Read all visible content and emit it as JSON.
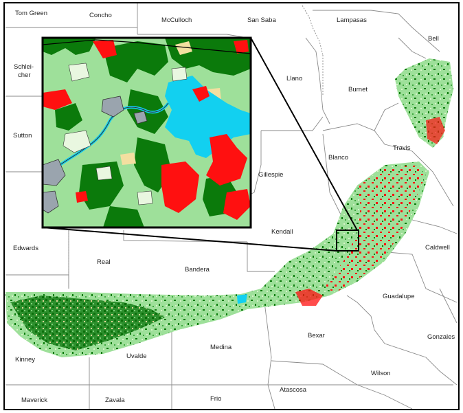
{
  "map": {
    "counties": [
      {
        "key": "tom-green",
        "name": "Tom Green"
      },
      {
        "key": "concho",
        "name": "Concho"
      },
      {
        "key": "mcculloch",
        "name": "McCulloch"
      },
      {
        "key": "san-saba",
        "name": "San Saba"
      },
      {
        "key": "lampasas",
        "name": "Lampasas"
      },
      {
        "key": "bell",
        "name": "Bell"
      },
      {
        "key": "schleicher-1",
        "name": "Schlei-"
      },
      {
        "key": "schleicher-2",
        "name": "cher"
      },
      {
        "key": "llano",
        "name": "Llano"
      },
      {
        "key": "burnet",
        "name": "Burnet"
      },
      {
        "key": "sutton",
        "name": "Sutton"
      },
      {
        "key": "travis",
        "name": "Travis"
      },
      {
        "key": "blanco",
        "name": "Blanco"
      },
      {
        "key": "gillespie",
        "name": "Gillespie"
      },
      {
        "key": "kendall",
        "name": "Kendall"
      },
      {
        "key": "edwards",
        "name": "Edwards"
      },
      {
        "key": "real",
        "name": "Real"
      },
      {
        "key": "caldwell",
        "name": "Caldwell"
      },
      {
        "key": "bandera",
        "name": "Bandera"
      },
      {
        "key": "guadalupe",
        "name": "Guadalupe"
      },
      {
        "key": "bexar",
        "name": "Bexar"
      },
      {
        "key": "gonzales",
        "name": "Gonzales"
      },
      {
        "key": "kinney",
        "name": "Kinney"
      },
      {
        "key": "uvalde",
        "name": "Uvalde"
      },
      {
        "key": "medina",
        "name": "Medina"
      },
      {
        "key": "wilson",
        "name": "Wilson"
      },
      {
        "key": "atascosa",
        "name": "Atascosa"
      },
      {
        "key": "maverick",
        "name": "Maverick"
      },
      {
        "key": "zavala",
        "name": "Zavala"
      },
      {
        "key": "frio",
        "name": "Frio"
      }
    ],
    "colors": {
      "background": "#ffffff",
      "county_line": "#8a8a8a",
      "light_vegetation": "#9ee09a",
      "forest": "#0b7a0b",
      "urban": "#ff1010",
      "water": "#12d0f0",
      "rock": "#9aa4ae",
      "grassland": "#f3dfa0",
      "frame": "#000000"
    }
  }
}
